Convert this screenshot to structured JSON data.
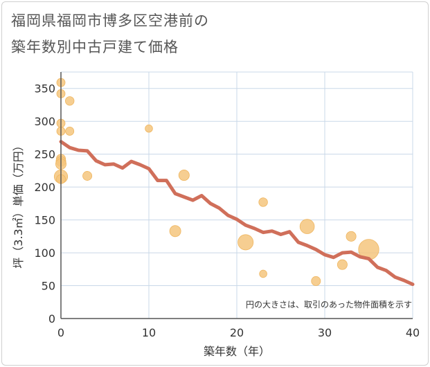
{
  "chart_data": {
    "type": "scatter",
    "title_line1": "福岡県福岡市博多区空港前の",
    "title_line2": "築年数別中古戸建て価格",
    "xlabel": "築年数（年）",
    "ylabel": "坪（3.3㎡）単価（万円）",
    "xlim": [
      0,
      40
    ],
    "ylim": [
      0,
      375
    ],
    "xticks": [
      0,
      10,
      20,
      30,
      40
    ],
    "yticks": [
      0,
      50,
      100,
      150,
      200,
      250,
      300,
      350
    ],
    "note": "円の大きさは、取引のあった物件面積を示す",
    "colors": {
      "bubble": "#f5c57e",
      "bubble_edge": "#efb660",
      "line": "#d06f5a",
      "grid": "#c9d8e8",
      "axis": "#555555"
    },
    "bubbles": [
      {
        "x": 0,
        "y": 359,
        "size": 1
      },
      {
        "x": 0,
        "y": 342,
        "size": 1
      },
      {
        "x": 0,
        "y": 297,
        "size": 1
      },
      {
        "x": 0,
        "y": 285,
        "size": 1
      },
      {
        "x": 0,
        "y": 243,
        "size": 1.2
      },
      {
        "x": 0,
        "y": 239,
        "size": 1.4
      },
      {
        "x": 0,
        "y": 235,
        "size": 1.6
      },
      {
        "x": 0,
        "y": 216,
        "size": 2.6
      },
      {
        "x": 0,
        "y": 212,
        "size": 1.2
      },
      {
        "x": 1,
        "y": 331,
        "size": 1.1
      },
      {
        "x": 1,
        "y": 285,
        "size": 1
      },
      {
        "x": 3,
        "y": 217,
        "size": 1.2
      },
      {
        "x": 10,
        "y": 289,
        "size": 0.8
      },
      {
        "x": 14,
        "y": 218,
        "size": 1.6
      },
      {
        "x": 13,
        "y": 133,
        "size": 1.8
      },
      {
        "x": 21,
        "y": 116,
        "size": 3.4
      },
      {
        "x": 23,
        "y": 177,
        "size": 1.1
      },
      {
        "x": 23,
        "y": 68,
        "size": 0.8
      },
      {
        "x": 28,
        "y": 140,
        "size": 3.0
      },
      {
        "x": 29,
        "y": 57,
        "size": 1.2
      },
      {
        "x": 32,
        "y": 82,
        "size": 1.4
      },
      {
        "x": 33,
        "y": 125,
        "size": 1.4
      },
      {
        "x": 35,
        "y": 105,
        "size": 6.0
      }
    ],
    "line": {
      "x": [
        0,
        1,
        2,
        3,
        4,
        5,
        6,
        7,
        8,
        9,
        10,
        11,
        12,
        13,
        14,
        15,
        16,
        17,
        18,
        19,
        20,
        21,
        22,
        23,
        24,
        25,
        26,
        27,
        28,
        29,
        30,
        31,
        32,
        33,
        34,
        35,
        36,
        37,
        38,
        39,
        40
      ],
      "y": [
        269,
        260,
        256,
        255,
        240,
        234,
        235,
        229,
        239,
        234,
        228,
        210,
        210,
        190,
        185,
        180,
        187,
        175,
        168,
        157,
        151,
        142,
        137,
        131,
        133,
        128,
        132,
        116,
        111,
        105,
        97,
        93,
        100,
        101,
        94,
        91,
        78,
        73,
        63,
        58,
        52
      ]
    }
  }
}
